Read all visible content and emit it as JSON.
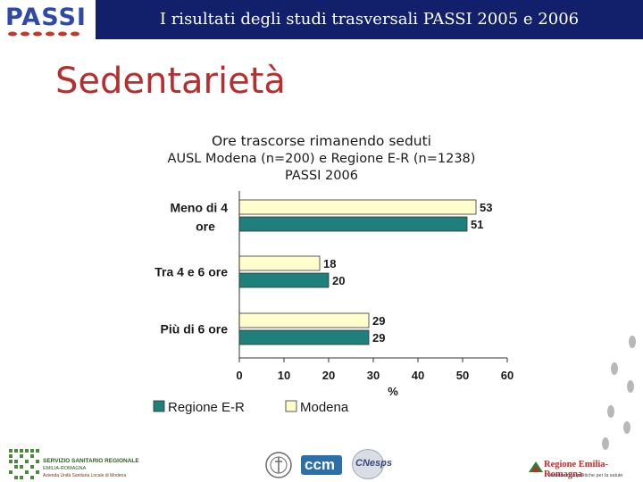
{
  "header": {
    "title": "I risultati degli studi trasversali  PASSI 2005 e 2006",
    "logo_text": "PASSI"
  },
  "page_title": "Sedentarietà",
  "chart_data": {
    "type": "bar",
    "orientation": "horizontal",
    "title": "Ore trascorse rimanendo seduti",
    "subtitle": "AUSL Modena (n=200) e Regione E-R (n=1238)",
    "subtitle2": "PASSI 2006",
    "categories": [
      "Meno di 4 ore",
      "Tra 4 e 6 ore",
      "Più di 6 ore"
    ],
    "series": [
      {
        "name": "Modena",
        "values": [
          53,
          18,
          29
        ],
        "color": "#ffffcc"
      },
      {
        "name": "Regione E-R",
        "values": [
          51,
          20,
          29
        ],
        "color": "#1f7f7a"
      }
    ],
    "xlabel": "%",
    "xlim": [
      0,
      60
    ],
    "xticks": [
      0,
      10,
      20,
      30,
      40,
      50,
      60
    ],
    "legend_order": [
      "Regione E-R",
      "Modena"
    ],
    "legend_position": "bottom",
    "grid": false
  },
  "footer": {
    "left_logo_lines": [
      "SERVIZIO SANITARIO REGIONALE",
      "EMILIA-ROMAGNA",
      "Azienda Unità Sanitaria Locale di Modena"
    ],
    "center_logo_ccm": "ccm",
    "center_logo_cnesps": "CNesps",
    "right_logo_title": "Regione Emilia-Romagna",
    "right_logo_sub": "Assessorato politiche per la salute"
  }
}
